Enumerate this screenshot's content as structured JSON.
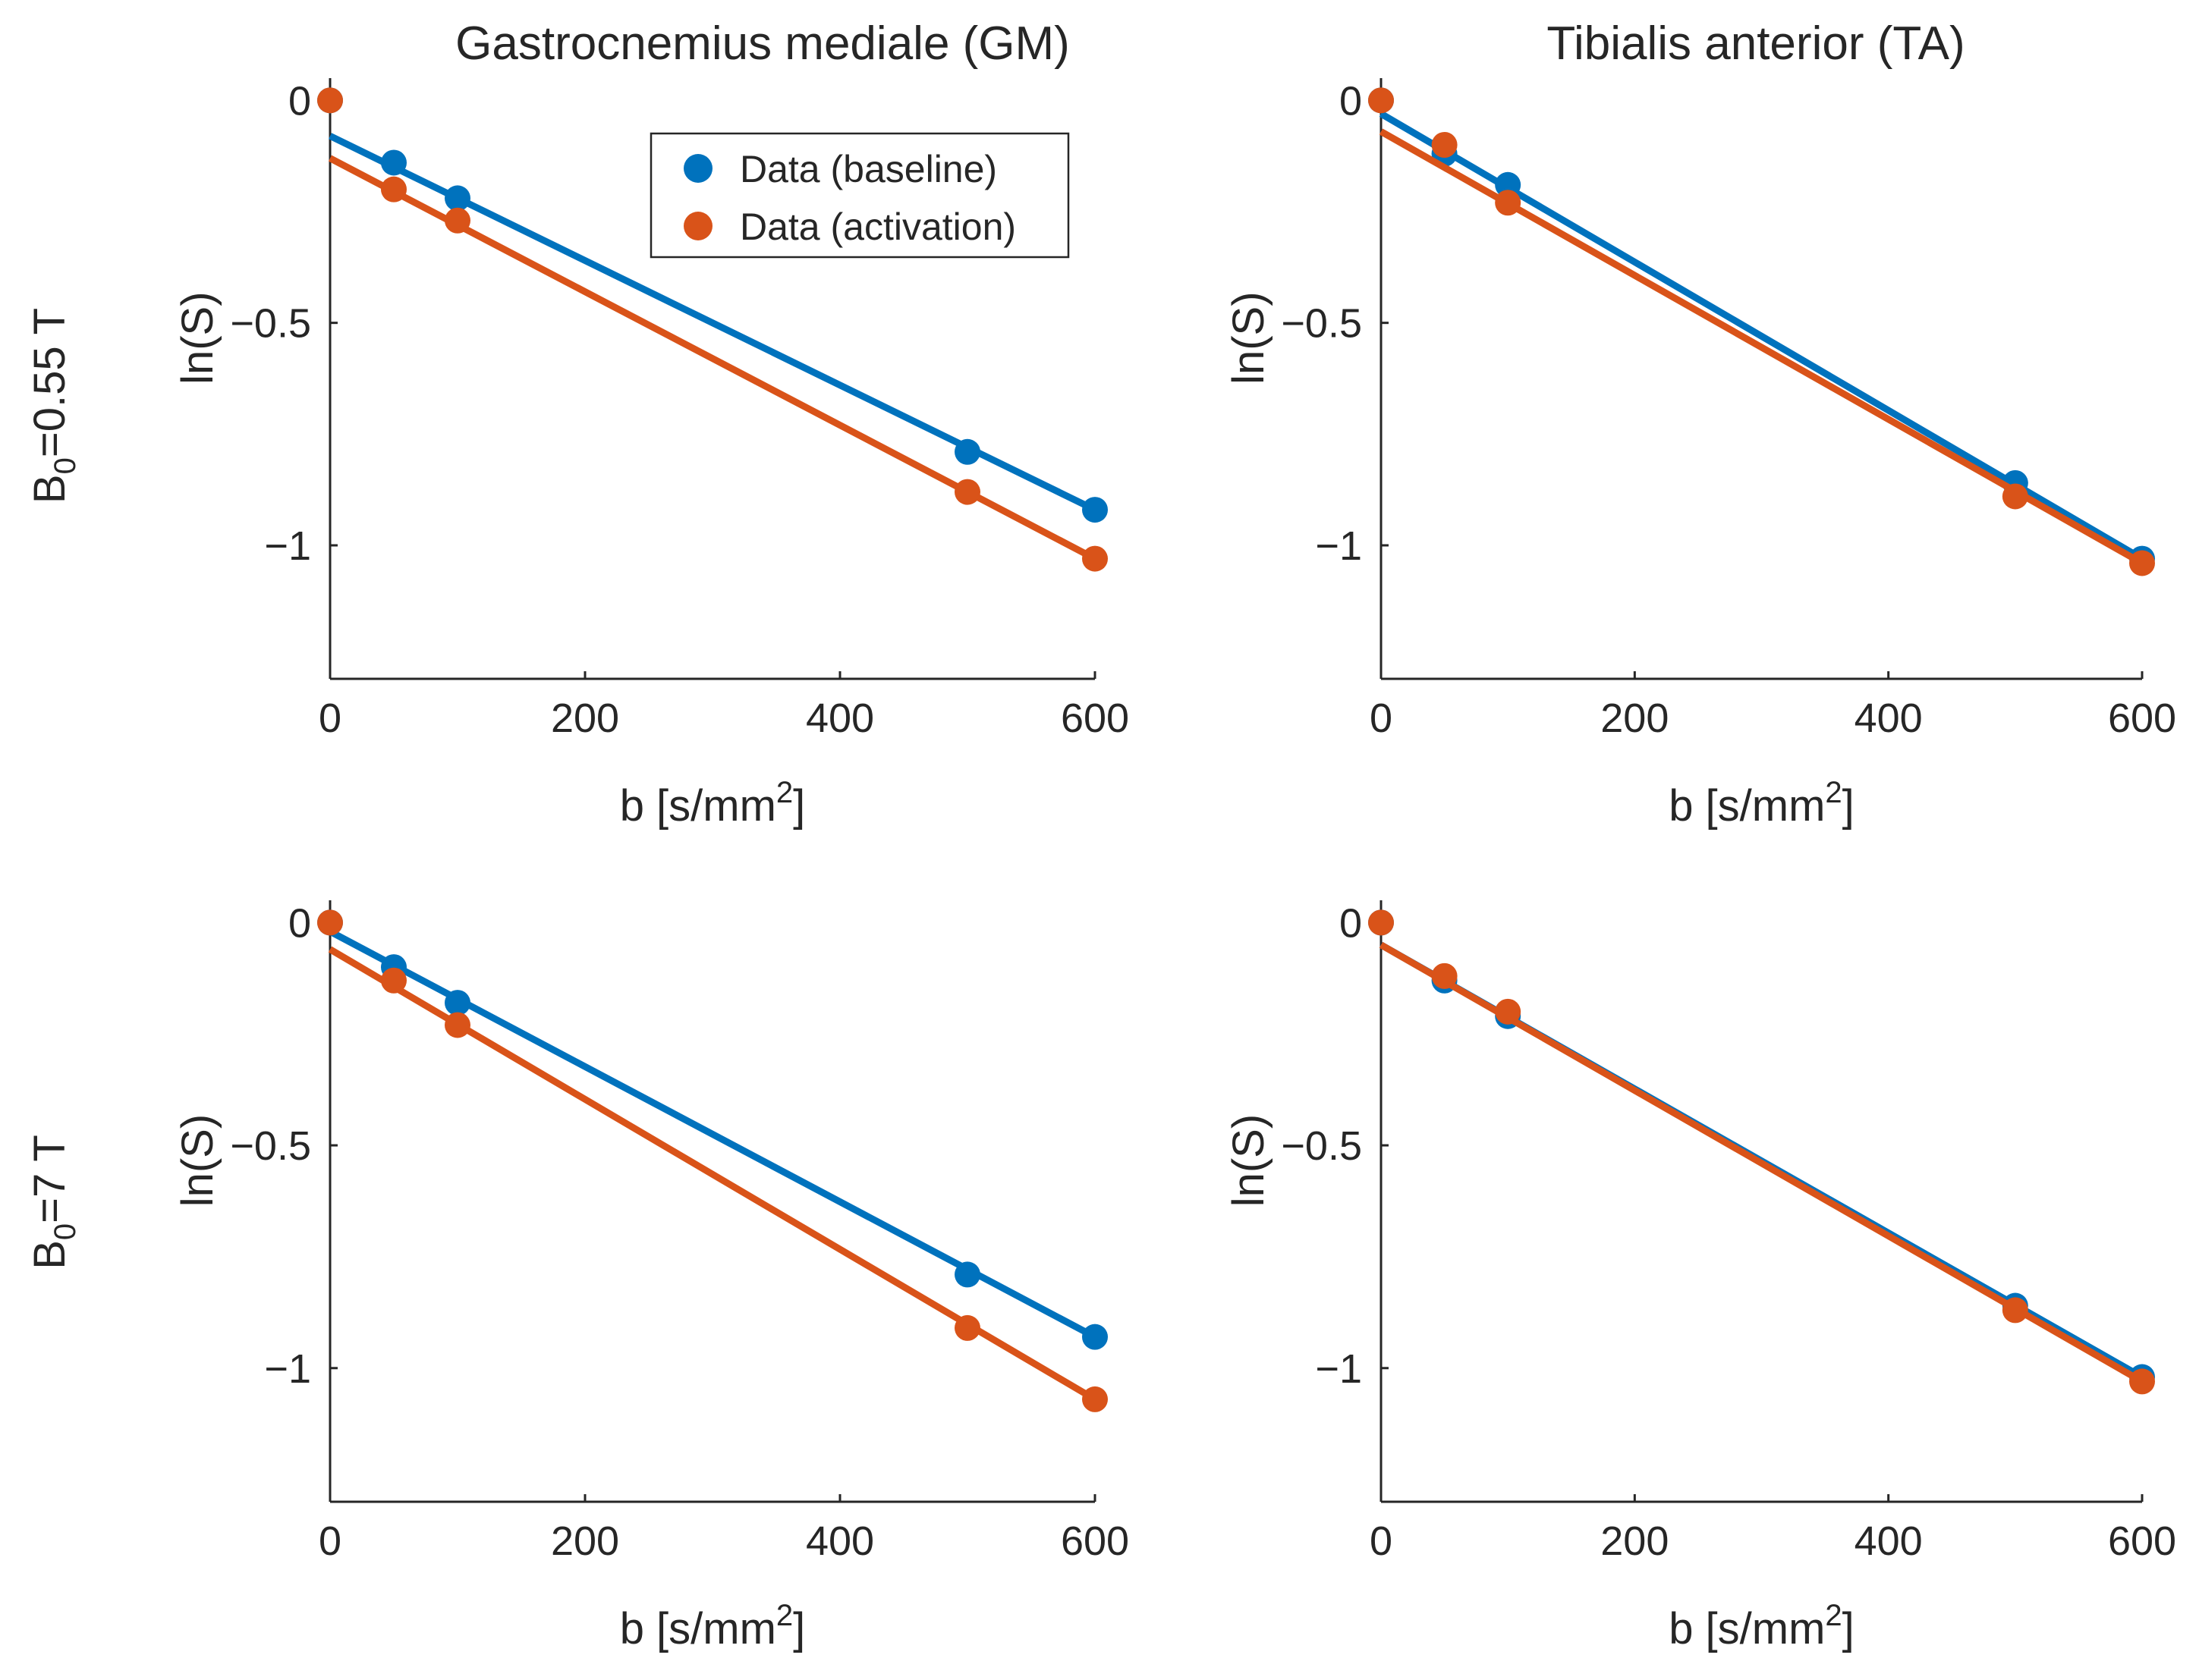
{
  "figure": {
    "column_titles": [
      "Gastrocnemius mediale (GM)",
      "Tibialis anterior (TA)"
    ],
    "row_labels": [
      {
        "main": "B",
        "sub": "0",
        "rest": "=0.55 T"
      },
      {
        "main": "B",
        "sub": "0",
        "rest": "=7 T"
      }
    ]
  },
  "legend": {
    "items": [
      {
        "label": "Data (baseline)",
        "color": "#0072BD"
      },
      {
        "label": "Data (activation)",
        "color": "#D95319"
      }
    ]
  },
  "chart_data": [
    {
      "type": "scatter",
      "panel": "GM, B0=0.55 T",
      "xlabel": "b [s/mm2]",
      "xlabel_main": "b [s/mm",
      "xlabel_sup": "2",
      "xlabel_close": "]",
      "ylabel": "ln(S)",
      "xlim": [
        0,
        600
      ],
      "ylim": [
        -1.3,
        0.05
      ],
      "xticks": [
        "0",
        "200",
        "400",
        "600"
      ],
      "yticks": [
        "0",
        "−0.5",
        "−1"
      ],
      "show_legend": true,
      "series": [
        {
          "name": "Data (baseline)",
          "color": "#0072BD",
          "x": [
            0,
            50,
            100,
            500,
            600
          ],
          "y": [
            0,
            -0.14,
            -0.22,
            -0.79,
            -0.92
          ],
          "fit": [
            [
              0,
              -0.08
            ],
            [
              600,
              -0.92
            ]
          ]
        },
        {
          "name": "Data (activation)",
          "color": "#D95319",
          "x": [
            0,
            50,
            100,
            500,
            600
          ],
          "y": [
            0,
            -0.2,
            -0.27,
            -0.88,
            -1.03
          ],
          "fit": [
            [
              0,
              -0.13
            ],
            [
              600,
              -1.03
            ]
          ]
        }
      ]
    },
    {
      "type": "scatter",
      "panel": "TA, B0=0.55 T",
      "xlabel": "b [s/mm2]",
      "xlabel_main": "b [s/mm",
      "xlabel_sup": "2",
      "xlabel_close": "]",
      "ylabel": "ln(S)",
      "xlim": [
        0,
        600
      ],
      "ylim": [
        -1.3,
        0.05
      ],
      "xticks": [
        "0",
        "200",
        "400",
        "600"
      ],
      "yticks": [
        "0",
        "−0.5",
        "−1"
      ],
      "show_legend": false,
      "series": [
        {
          "name": "Data (baseline)",
          "color": "#0072BD",
          "x": [
            0,
            50,
            100,
            500,
            600
          ],
          "y": [
            0,
            -0.12,
            -0.19,
            -0.86,
            -1.03
          ],
          "fit": [
            [
              0,
              -0.03
            ],
            [
              600,
              -1.03
            ]
          ]
        },
        {
          "name": "Data (activation)",
          "color": "#D95319",
          "x": [
            0,
            50,
            100,
            500,
            600
          ],
          "y": [
            0,
            -0.1,
            -0.23,
            -0.89,
            -1.04
          ],
          "fit": [
            [
              0,
              -0.07
            ],
            [
              600,
              -1.04
            ]
          ]
        }
      ]
    },
    {
      "type": "scatter",
      "panel": "GM, B0=7 T",
      "xlabel": "b [s/mm2]",
      "xlabel_main": "b [s/mm",
      "xlabel_sup": "2",
      "xlabel_close": "]",
      "ylabel": "ln(S)",
      "xlim": [
        0,
        600
      ],
      "ylim": [
        -1.3,
        0.05
      ],
      "xticks": [
        "0",
        "200",
        "400",
        "600"
      ],
      "yticks": [
        "0",
        "−0.5",
        "−1"
      ],
      "show_legend": false,
      "series": [
        {
          "name": "Data (baseline)",
          "color": "#0072BD",
          "x": [
            0,
            50,
            100,
            500,
            600
          ],
          "y": [
            0,
            -0.1,
            -0.18,
            -0.79,
            -0.93
          ],
          "fit": [
            [
              0,
              -0.02
            ],
            [
              600,
              -0.93
            ]
          ]
        },
        {
          "name": "Data (activation)",
          "color": "#D95319",
          "x": [
            0,
            50,
            100,
            500,
            600
          ],
          "y": [
            0,
            -0.13,
            -0.23,
            -0.91,
            -1.07
          ],
          "fit": [
            [
              0,
              -0.06
            ],
            [
              600,
              -1.07
            ]
          ]
        }
      ]
    },
    {
      "type": "scatter",
      "panel": "TA, B0=7 T",
      "xlabel": "b [s/mm2]",
      "xlabel_main": "b [s/mm",
      "xlabel_sup": "2",
      "xlabel_close": "]",
      "ylabel": "ln(S)",
      "xlim": [
        0,
        600
      ],
      "ylim": [
        -1.3,
        0.05
      ],
      "xticks": [
        "0",
        "200",
        "400",
        "600"
      ],
      "yticks": [
        "0",
        "−0.5",
        "−1"
      ],
      "show_legend": false,
      "series": [
        {
          "name": "Data (baseline)",
          "color": "#0072BD",
          "x": [
            0,
            50,
            100,
            500,
            600
          ],
          "y": [
            0,
            -0.13,
            -0.21,
            -0.86,
            -1.02
          ],
          "fit": [
            [
              0,
              -0.05
            ],
            [
              600,
              -1.02
            ]
          ]
        },
        {
          "name": "Data (activation)",
          "color": "#D95319",
          "x": [
            0,
            50,
            100,
            500,
            600
          ],
          "y": [
            0,
            -0.12,
            -0.2,
            -0.87,
            -1.03
          ],
          "fit": [
            [
              0,
              -0.05
            ],
            [
              600,
              -1.03
            ]
          ]
        }
      ]
    }
  ]
}
